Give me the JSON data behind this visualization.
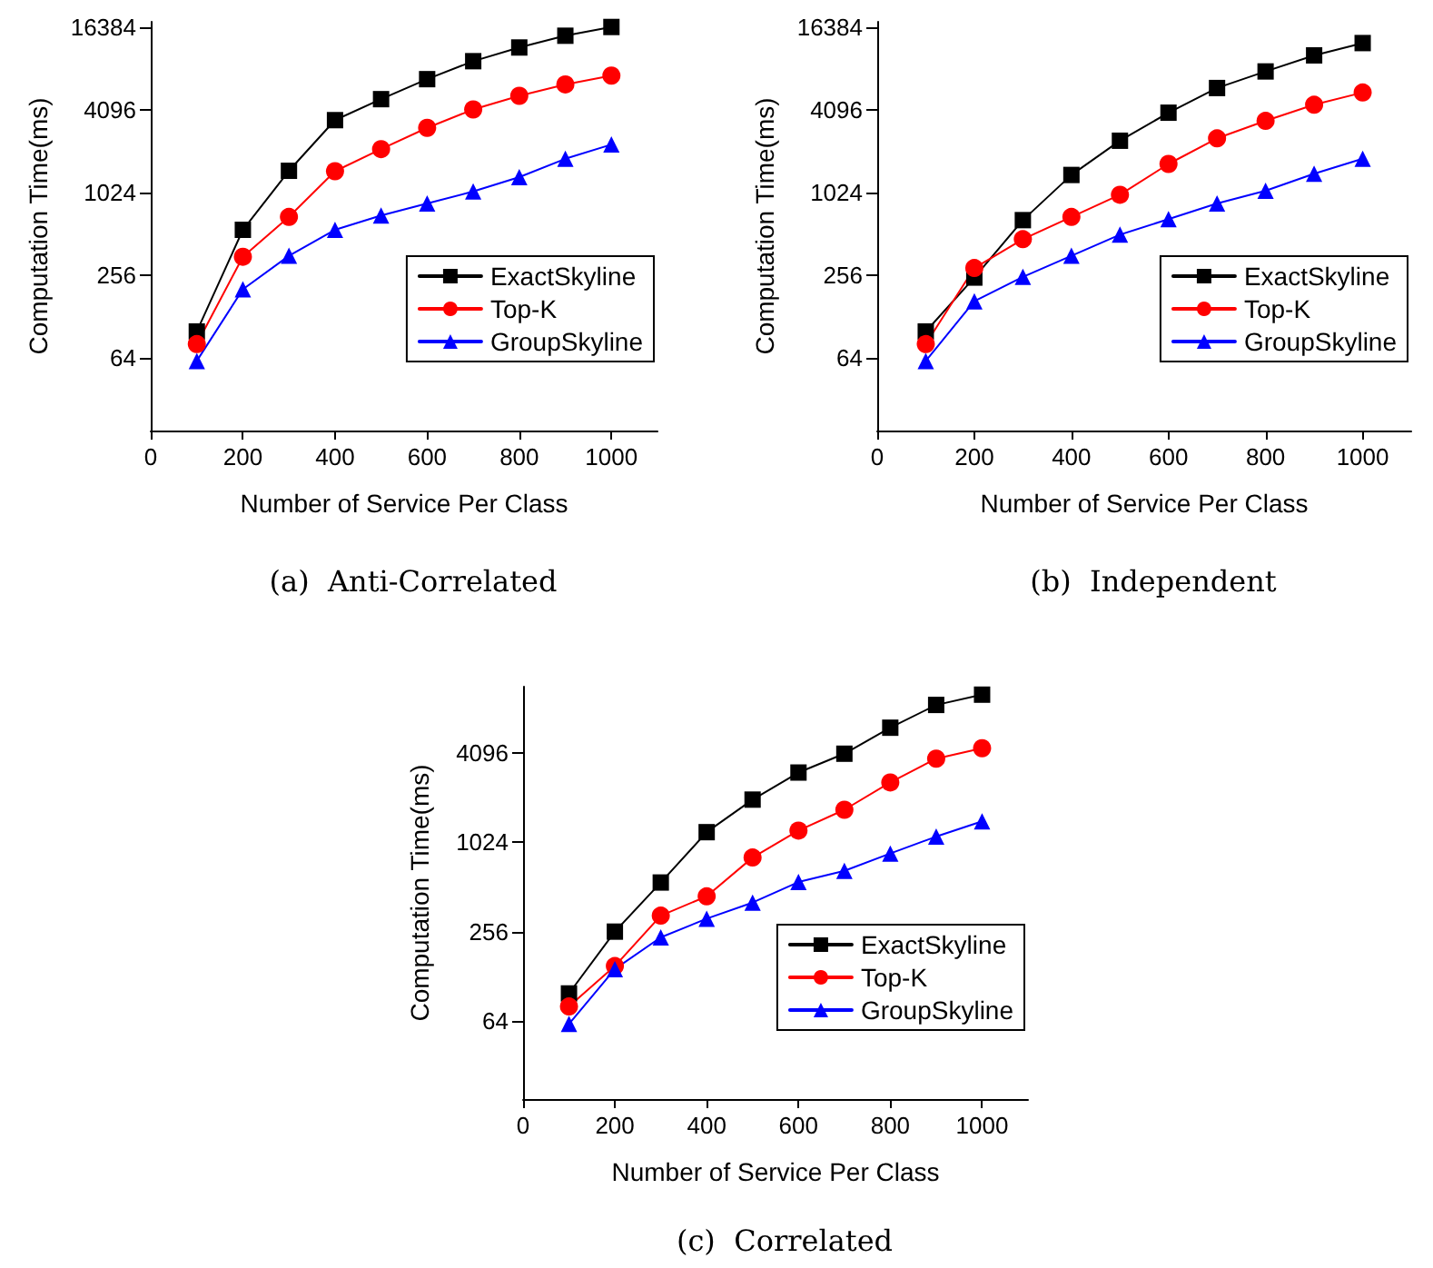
{
  "chart_data": [
    {
      "type": "line",
      "xlabel": "Number of Service Per Class",
      "ylabel": "Computation Time(ms)",
      "annotations": [
        "(a)  Anti-Correlated"
      ],
      "x": [
        100,
        200,
        300,
        400,
        500,
        600,
        700,
        800,
        900,
        1000
      ],
      "log": "y",
      "grid": false,
      "legend": "bottom right",
      "xlim": [
        0,
        1100
      ],
      "xticks": [
        0,
        200,
        400,
        600,
        800,
        1000
      ],
      "ylim": [
        19,
        18000
      ],
      "yticks": [
        64,
        256,
        1024,
        4096,
        16384
      ],
      "series": [
        {
          "name": "ExactSkyline",
          "color": "#000000",
          "marker": "square",
          "values": [
            100,
            550,
            1480,
            3460,
            4920,
            6880,
            9300,
            11700,
            14250,
            16500
          ]
        },
        {
          "name": "Top-K",
          "color": "#ff0000",
          "marker": "circle",
          "values": [
            81,
            350,
            683,
            1470,
            2130,
            3040,
            4140,
            5200,
            6300,
            7300
          ]
        },
        {
          "name": "GroupSkyline",
          "color": "#0000ff",
          "marker": "triangle",
          "values": [
            61,
            203,
            356,
            550,
            700,
            855,
            1047,
            1330,
            1810,
            2300
          ]
        }
      ]
    },
    {
      "type": "line",
      "xlabel": "Number of Service Per Class",
      "ylabel": "Computation Time(ms)",
      "annotations": [
        "(b)  Independent"
      ],
      "x": [
        100,
        200,
        300,
        400,
        500,
        600,
        700,
        800,
        900,
        1000
      ],
      "log": "y",
      "grid": false,
      "legend": "bottom right",
      "xlim": [
        0,
        1100
      ],
      "xticks": [
        0,
        200,
        400,
        600,
        800,
        1000
      ],
      "ylim": [
        19,
        18000
      ],
      "yticks": [
        64,
        256,
        1024,
        4096,
        16384
      ],
      "series": [
        {
          "name": "ExactSkyline",
          "color": "#000000",
          "marker": "square",
          "values": [
            100,
            247,
            647,
            1380,
            2450,
            3920,
            5930,
            7830,
            10250,
            12600
          ]
        },
        {
          "name": "Top-K",
          "color": "#ff0000",
          "marker": "circle",
          "values": [
            81,
            290,
            470,
            683,
            990,
            1660,
            2550,
            3420,
            4480,
            5500
          ]
        },
        {
          "name": "GroupSkyline",
          "color": "#0000ff",
          "marker": "triangle",
          "values": [
            61,
            166,
            250,
            356,
            507,
            658,
            855,
            1060,
            1410,
            1810
          ]
        }
      ]
    },
    {
      "type": "line",
      "xlabel": "Number of Service Per Class",
      "ylabel": "Computation Time(ms)",
      "annotations": [
        "(c)  Correlated"
      ],
      "x": [
        100,
        200,
        300,
        400,
        500,
        600,
        700,
        800,
        900,
        1000
      ],
      "log": "y",
      "grid": false,
      "legend": "bottom right",
      "xlim": [
        0,
        1100
      ],
      "xticks": [
        0,
        200,
        400,
        600,
        800,
        1000
      ],
      "ylim": [
        19,
        11500
      ],
      "yticks": [
        64,
        256,
        1024,
        4096
      ],
      "series": [
        {
          "name": "ExactSkyline",
          "color": "#000000",
          "marker": "square",
          "values": [
            98,
            256,
            549,
            1200,
            1990,
            3030,
            4060,
            6080,
            8660,
            10160
          ]
        },
        {
          "name": "Top-K",
          "color": "#ff0000",
          "marker": "circle",
          "values": [
            80,
            150,
            328,
            443,
            809,
            1230,
            1700,
            2600,
            3760,
            4420
          ]
        },
        {
          "name": "GroupSkyline",
          "color": "#0000ff",
          "marker": "triangle",
          "values": [
            61,
            143,
            234,
            313,
            402,
            553,
            658,
            862,
            1120,
            1420
          ]
        }
      ]
    }
  ]
}
